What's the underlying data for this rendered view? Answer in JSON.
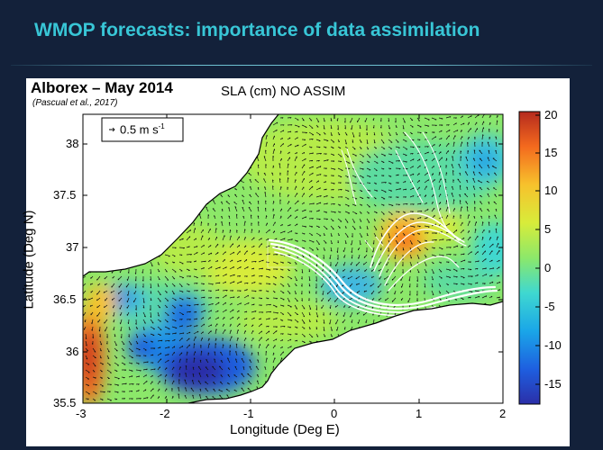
{
  "slide": {
    "title": "WMOP forecasts: importance of data assimilation"
  },
  "figure": {
    "heading": "Alborex – May 2014",
    "citation": "(Pascual et al., 2017)",
    "map_title": "SLA (cm) NO ASSIM",
    "scale_vector": {
      "label": "0.5 m s",
      "exponent": "-1"
    },
    "x_axis": {
      "label": "Longitude (Deg E)",
      "ticks": [
        "-3",
        "-2",
        "-1",
        "0",
        "1",
        "2"
      ],
      "range": [
        -3,
        2
      ]
    },
    "y_axis": {
      "label": "Latitude (Deg N)",
      "ticks": [
        "38",
        "37.5",
        "37",
        "36.5",
        "36",
        "35.5"
      ],
      "range": [
        35.5,
        38.3
      ]
    },
    "colorbar": {
      "ticks": [
        "20",
        "15",
        "10",
        "5",
        "0",
        "-5",
        "-10",
        "-15"
      ],
      "range": [
        -18,
        21
      ],
      "colors": [
        "#2b2fa8",
        "#1e5fe0",
        "#1aa6e8",
        "#3fd8d0",
        "#8ce86a",
        "#d8ec3a",
        "#f7c22c",
        "#f46a1e",
        "#b52a1e"
      ]
    },
    "colors": {
      "land": "#ffffff",
      "coastline": "#000000",
      "trajectories": "#ffffff",
      "arrows": "#111111"
    }
  }
}
